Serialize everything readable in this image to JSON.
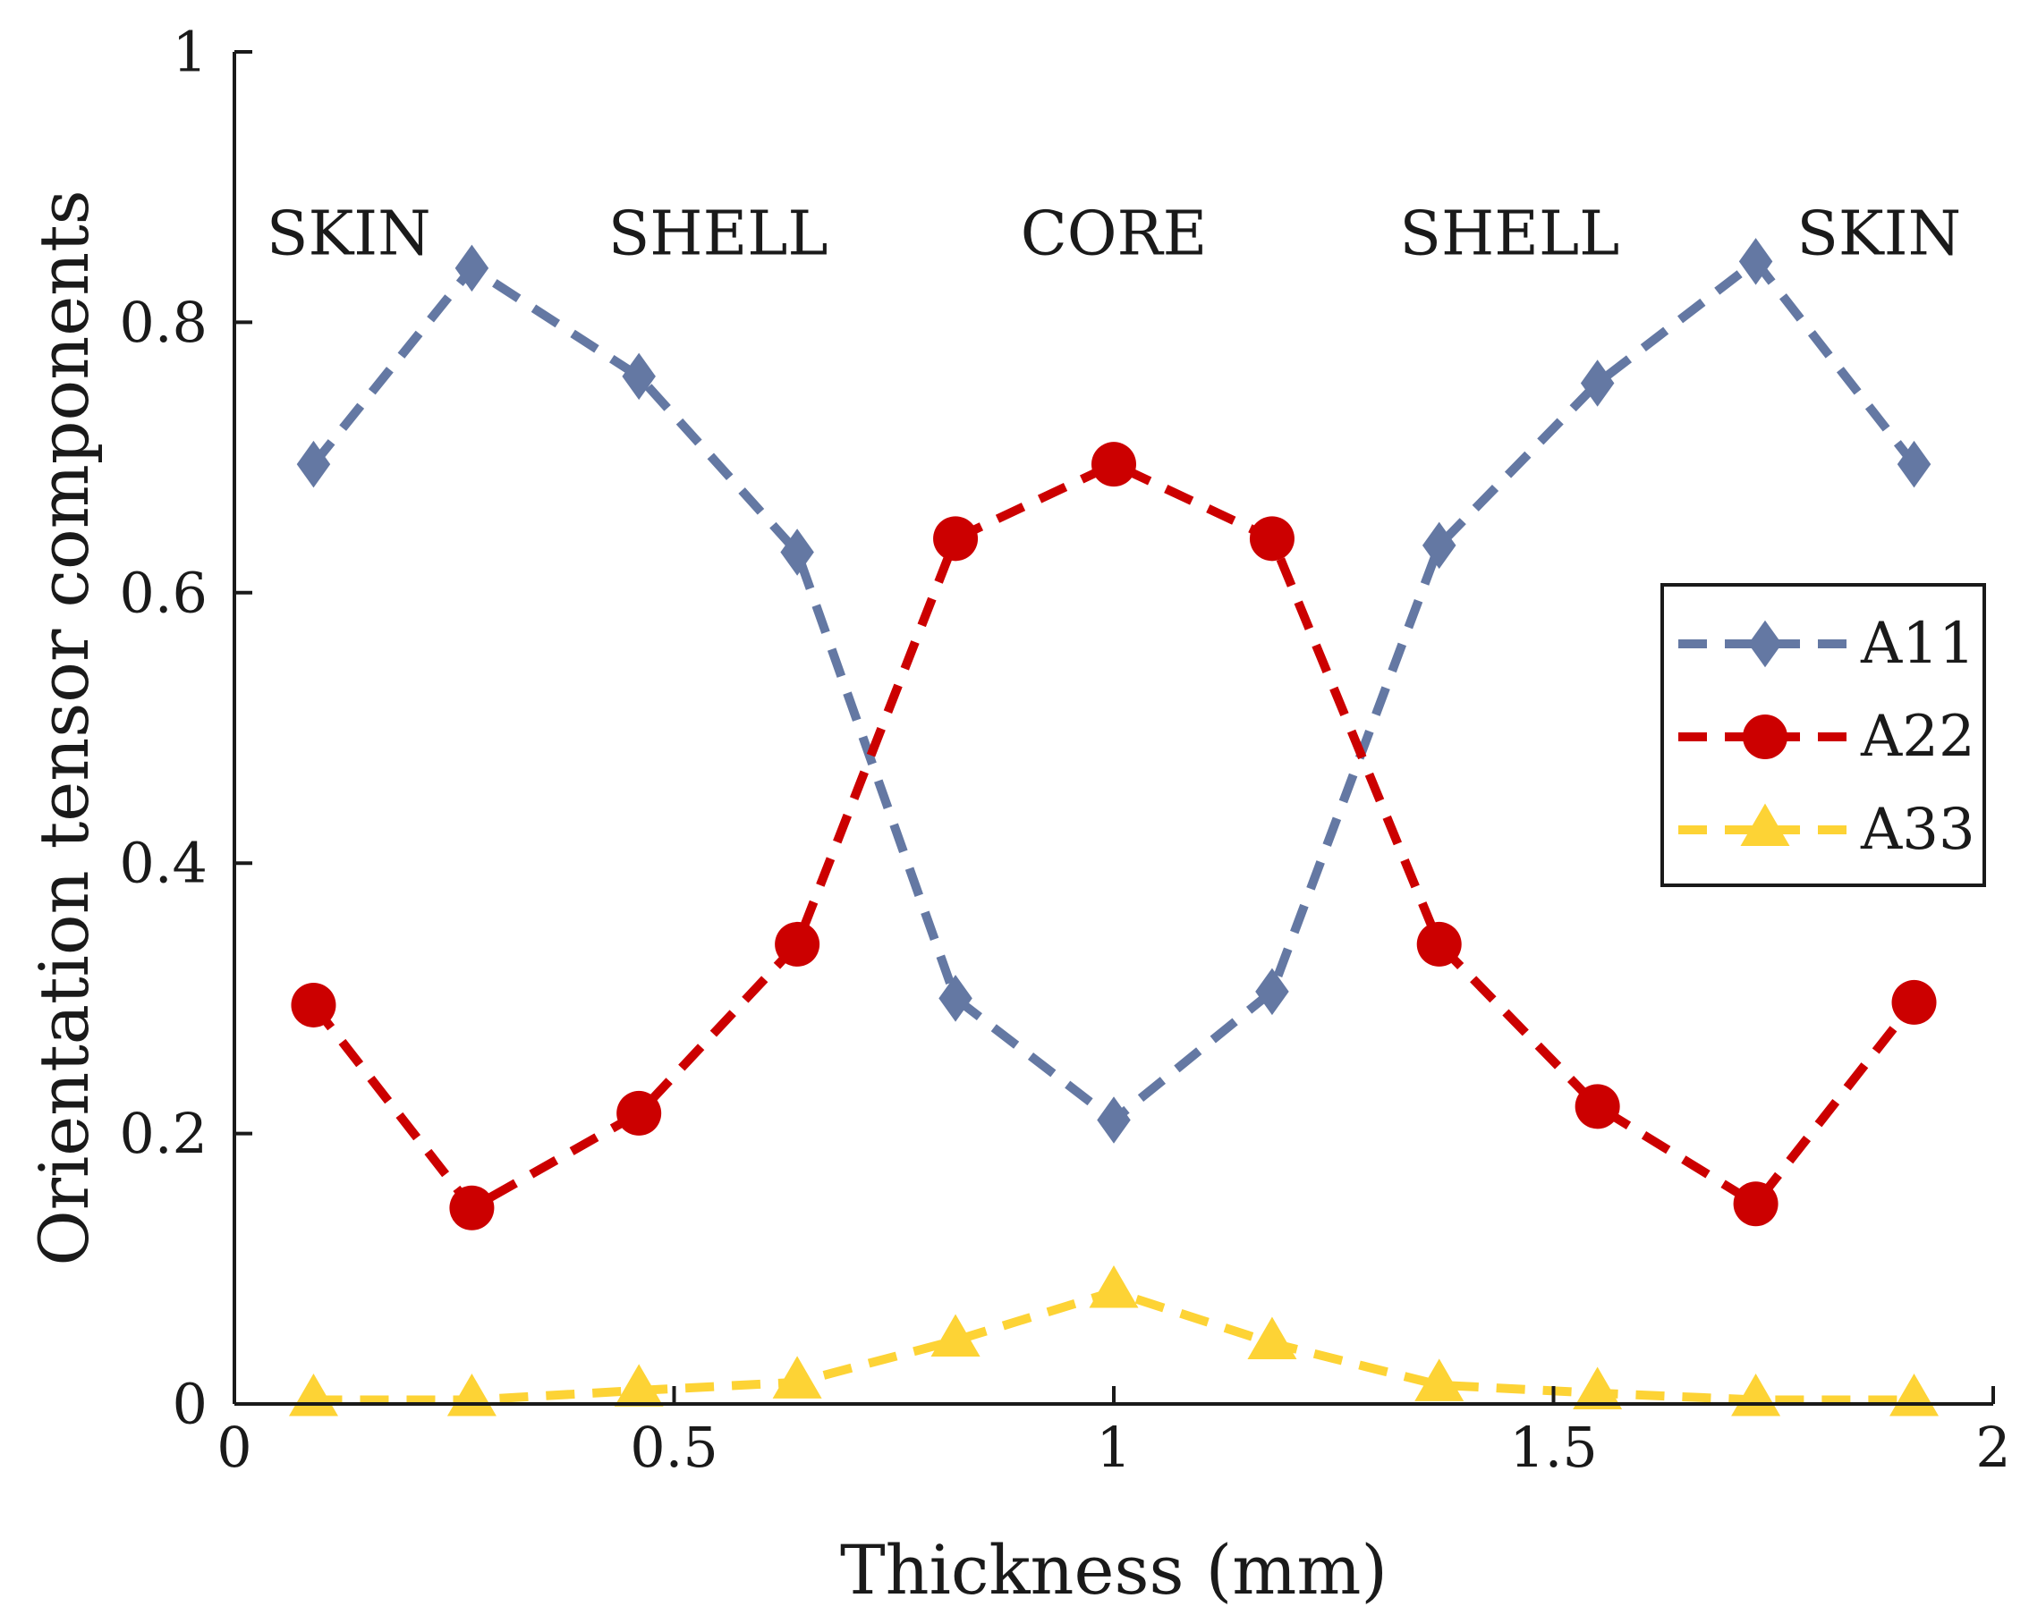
{
  "chart_data": {
    "type": "line",
    "xlabel": "Thickness (mm)",
    "ylabel": "Orientation tensor components",
    "xlim": [
      0,
      2
    ],
    "ylim": [
      0,
      1
    ],
    "xticks": [
      0,
      0.5,
      1,
      1.5,
      2
    ],
    "xtick_labels": [
      "0",
      "0.5",
      "1",
      "1.5",
      "2"
    ],
    "yticks": [
      0,
      0.2,
      0.4,
      0.6,
      0.8,
      1
    ],
    "ytick_labels": [
      "0",
      "0.2",
      "0.4",
      "0.6",
      "0.8",
      "1"
    ],
    "grid": false,
    "legend_position": "right",
    "x": [
      0.09,
      0.27,
      0.46,
      0.64,
      0.82,
      1.0,
      1.18,
      1.37,
      1.55,
      1.73,
      1.91
    ],
    "series": [
      {
        "name": "A11",
        "marker": "diamond",
        "color": "#6478a3",
        "values": [
          0.695,
          0.84,
          0.76,
          0.63,
          0.3,
          0.21,
          0.305,
          0.635,
          0.755,
          0.845,
          0.695
        ]
      },
      {
        "name": "A22",
        "marker": "circle",
        "color": "#cc0000",
        "values": [
          0.295,
          0.145,
          0.215,
          0.34,
          0.64,
          0.695,
          0.64,
          0.34,
          0.22,
          0.148,
          0.297
        ]
      },
      {
        "name": "A33",
        "marker": "triangle",
        "color": "#fdd335",
        "values": [
          0.003,
          0.003,
          0.01,
          0.016,
          0.047,
          0.083,
          0.045,
          0.014,
          0.008,
          0.003,
          0.003
        ]
      }
    ],
    "annotations": [
      {
        "text": "SKIN",
        "x": 0.13
      },
      {
        "text": "SHELL",
        "x": 0.55
      },
      {
        "text": "CORE",
        "x": 1.0
      },
      {
        "text": "SHELL",
        "x": 1.45
      },
      {
        "text": "SKIN",
        "x": 1.87
      }
    ],
    "annotation_y": 0.865
  }
}
